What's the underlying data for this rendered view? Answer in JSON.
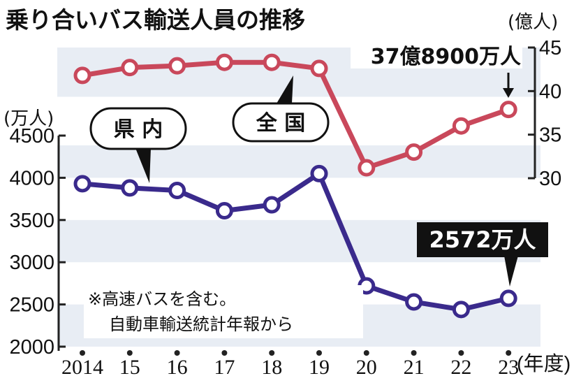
{
  "chart_data": {
    "type": "line",
    "title": "乗り合いバス輸送人員の推移",
    "categories": [
      "2014",
      "15",
      "16",
      "17",
      "18",
      "19",
      "20",
      "21",
      "22",
      "23"
    ],
    "x_unit": "(年度)",
    "series": [
      {
        "name": "県 内",
        "axis": "left",
        "unit": "(万人)",
        "color": "#3a2a8c",
        "values": [
          3930,
          3880,
          3850,
          3610,
          3680,
          4050,
          2720,
          2530,
          2440,
          2572
        ]
      },
      {
        "name": "全 国",
        "axis": "right",
        "unit": "(億人)",
        "color": "#c9485b",
        "values": [
          41.8,
          42.7,
          42.9,
          43.3,
          43.3,
          42.6,
          31.2,
          33.0,
          36.0,
          37.89
        ]
      }
    ],
    "left_axis": {
      "ylim": [
        2000,
        4500
      ],
      "ticks": [
        "2000",
        "2500",
        "3000",
        "3500",
        "4000",
        "4500"
      ]
    },
    "right_axis": {
      "ylim": [
        30,
        45
      ],
      "ticks": [
        "30",
        "35",
        "40",
        "45"
      ]
    },
    "annotations": {
      "national_last": "37億8900万人",
      "prefecture_last": "2572万人"
    },
    "note_lines": [
      "※高速バスを含む。",
      "自動車輸送統計年報から"
    ]
  },
  "colors": {
    "band": "#e8edf4",
    "axis": "#222222"
  }
}
